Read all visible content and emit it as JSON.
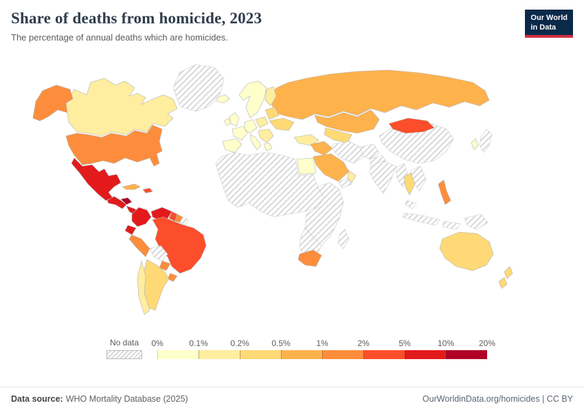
{
  "header": {
    "title": "Share of deaths from homicide, 2023",
    "subtitle": "The percentage of annual deaths which are homicides.",
    "logo_line1": "Our World",
    "logo_line2": "in Data"
  },
  "legend": {
    "no_data_label": "No data",
    "tick_labels": [
      "0%",
      "0.1%",
      "0.2%",
      "0.5%",
      "1%",
      "2%",
      "5%",
      "10%",
      "20%"
    ],
    "bin_colors": [
      "#ffffcc",
      "#ffeda0",
      "#fed976",
      "#feb24c",
      "#fd8d3c",
      "#fc4e2a",
      "#e31a1c",
      "#b10026"
    ],
    "no_data_pattern_color": "#d7d9da"
  },
  "footer": {
    "source_label": "Data source:",
    "source_value": "WHO Mortality Database (2025)",
    "attribution": "OurWorldinData.org/homicides | CC BY"
  },
  "map": {
    "bin_ranges": [
      "0-0.1%",
      "0.1-0.2%",
      "0.2-0.5%",
      "0.5-1%",
      "1-2%",
      "2-5%",
      "5-10%",
      "10-20%"
    ],
    "countries": {
      "greenland": "nodata",
      "iceland": 0,
      "canada": 1,
      "alaska": 4,
      "usa": 4,
      "mexico": 6,
      "guatemala": 6,
      "honduras": 7,
      "panama_strip": 6,
      "cuba": 3,
      "hispaniola": 5,
      "colombia": 6,
      "venezuela": 6,
      "guyana": 5,
      "suriname": 4,
      "french_guiana": "nodata",
      "ecuador": 6,
      "peru": 4,
      "brazil": 5,
      "bolivia": "nodata",
      "paraguay": 4,
      "uruguay": 4,
      "argentina": 2,
      "chile": 1,
      "scandinavia": 0,
      "finland": 1,
      "uk": 0,
      "ireland": 0,
      "france": 0,
      "iberia": 0,
      "central_europe": 0,
      "italy": 0,
      "poland": 1,
      "baltics": 2,
      "ukraine": 2,
      "balkans": 1,
      "greece": 0,
      "turkey": 1,
      "russia": 3,
      "kazakhstan": 3,
      "central_asia": 2,
      "iraq_syria": 3,
      "iran": "nodata",
      "saudi_arabia": 3,
      "yemen": "nodata",
      "oman": 1,
      "afghanistan": "nodata",
      "pakistan": "nodata",
      "egypt": 0,
      "north_africa": "nodata",
      "east_africa": "nodata",
      "southern_africa": "nodata",
      "south_africa": 4,
      "madagascar": "nodata",
      "india": "nodata",
      "china": "nodata",
      "mongolia": 5,
      "myanmar": "nodata",
      "thailand": 2,
      "indochina": "nodata",
      "malaysia": "nodata",
      "indonesia_west": "nodata",
      "indonesia_east": "nodata",
      "philippines": 4,
      "papua_new_guinea": "nodata",
      "japan": "nodata",
      "south_korea": 0,
      "australia": 2,
      "new_zealand_north": 2,
      "new_zealand_south": 2
    }
  }
}
